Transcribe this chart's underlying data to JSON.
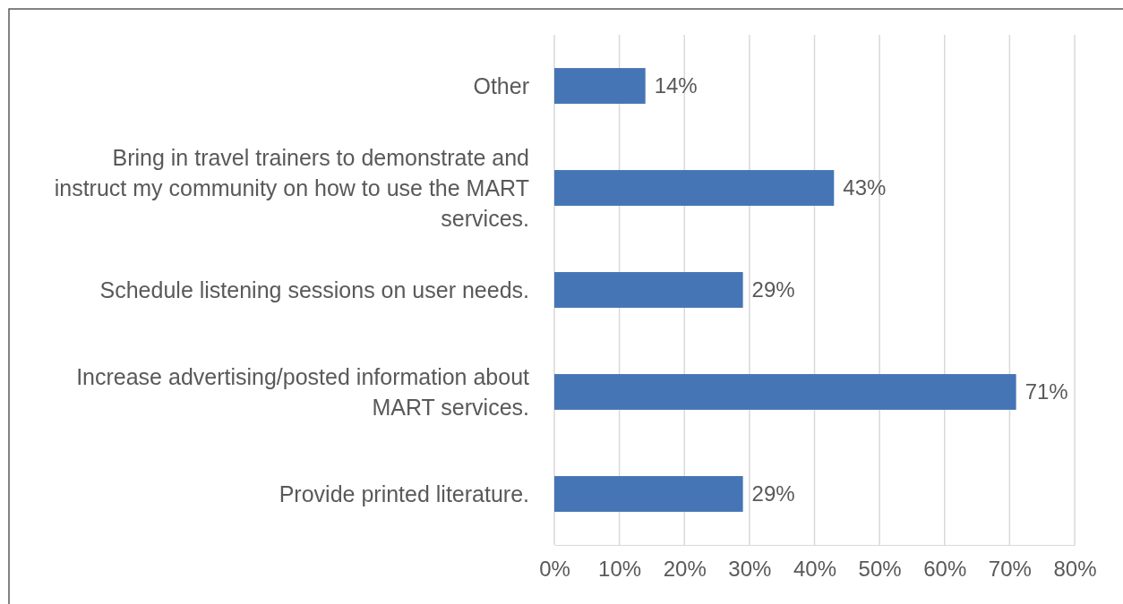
{
  "chart_data": {
    "type": "bar",
    "orientation": "horizontal",
    "categories": [
      "Other",
      "Bring in travel trainers to demonstrate and instruct my community on how to use the MART services.",
      "Schedule listening sessions on user needs.",
      "Increase advertising/posted information about MART services.",
      "Provide printed literature."
    ],
    "values": [
      14,
      43,
      29,
      71,
      29
    ],
    "value_labels": [
      "14%",
      "43%",
      "29%",
      "71%",
      "29%"
    ],
    "color": "#4575b4",
    "xlim": [
      0,
      80
    ],
    "xticks": [
      {
        "value": 0,
        "label": "0%"
      },
      {
        "value": 10,
        "label": "10%"
      },
      {
        "value": 20,
        "label": "20%"
      },
      {
        "value": 30,
        "label": "30%"
      },
      {
        "value": 40,
        "label": "40%"
      },
      {
        "value": 50,
        "label": "50%"
      },
      {
        "value": 60,
        "label": "60%"
      },
      {
        "value": 70,
        "label": "70%"
      },
      {
        "value": 80,
        "label": "80%"
      }
    ],
    "grid": "x"
  }
}
